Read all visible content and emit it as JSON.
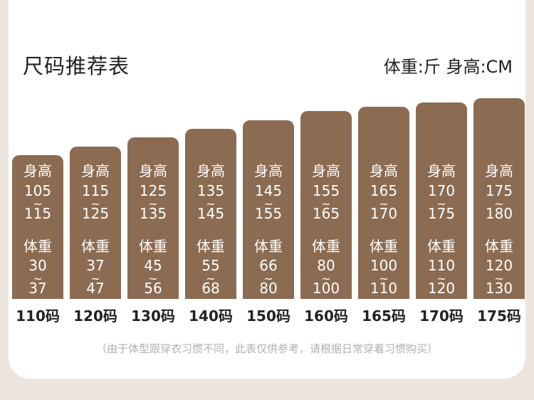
{
  "header": {
    "title": "尺码推荐表",
    "units": "体重:斤  身高:CM"
  },
  "chart_data": {
    "type": "bar",
    "categories": [
      "110码",
      "120码",
      "130码",
      "140码",
      "150码",
      "160码",
      "165码",
      "170码",
      "175码"
    ],
    "height_label": "身高",
    "weight_label": "体重",
    "range_separator": "~",
    "series": [
      {
        "name": "身高",
        "ranges": [
          [
            105,
            115
          ],
          [
            115,
            125
          ],
          [
            125,
            135
          ],
          [
            135,
            145
          ],
          [
            145,
            155
          ],
          [
            155,
            165
          ],
          [
            165,
            170
          ],
          [
            170,
            175
          ],
          [
            175,
            180
          ]
        ]
      },
      {
        "name": "体重",
        "ranges": [
          [
            30,
            37
          ],
          [
            37,
            47
          ],
          [
            45,
            56
          ],
          [
            55,
            68
          ],
          [
            66,
            80
          ],
          [
            80,
            100
          ],
          [
            100,
            110
          ],
          [
            110,
            120
          ],
          [
            120,
            130
          ]
        ]
      }
    ]
  },
  "note": "（由于体型跟穿衣习惯不同，此表仅供参考，请根据日常穿着习惯购买）"
}
